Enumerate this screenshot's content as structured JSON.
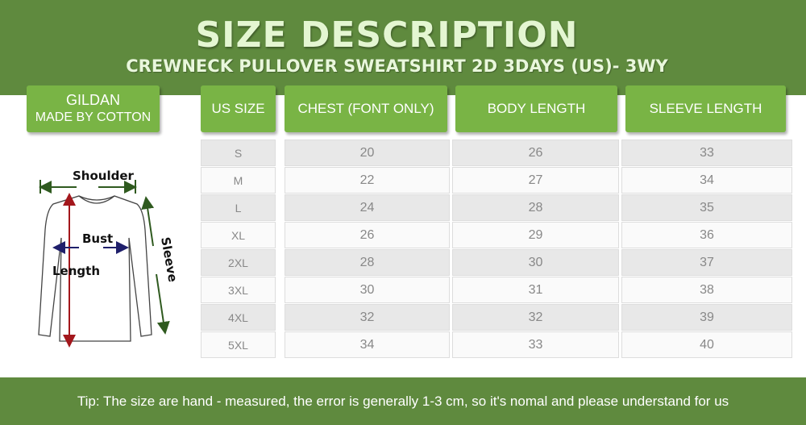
{
  "header": {
    "title": "SIZE DESCRIPTION",
    "subtitle": "CREWNECK PULLOVER SWEATSHIRT 2D 3DAYS (US)- 3WY"
  },
  "brand": {
    "name": "GILDAN",
    "material": "MADE BY COTTON"
  },
  "diagram": {
    "shoulder": "Shoulder",
    "bust": "Bust",
    "length": "Length",
    "sleeve": "Sleeve"
  },
  "table": {
    "columns": [
      "US SIZE",
      "CHEST (FONT ONLY)",
      "BODY LENGTH",
      "SLEEVE LENGTH"
    ],
    "rows": [
      [
        "S",
        "20",
        "26",
        "33"
      ],
      [
        "M",
        "22",
        "27",
        "34"
      ],
      [
        "L",
        "24",
        "28",
        "35"
      ],
      [
        "XL",
        "26",
        "29",
        "36"
      ],
      [
        "2XL",
        "28",
        "30",
        "37"
      ],
      [
        "3XL",
        "30",
        "31",
        "38"
      ],
      [
        "4XL",
        "32",
        "32",
        "39"
      ],
      [
        "5XL",
        "34",
        "33",
        "40"
      ]
    ]
  },
  "footer": {
    "tip": "Tip: The size are hand - measured, the error is generally 1-3 cm, so it's nomal and please understand for us"
  },
  "colors": {
    "dark_green": "#5f8a3e",
    "light_green": "#79b445",
    "length_arrow": "#a3171c",
    "bust_arrow": "#1f1f6b",
    "sleeve_arrow": "#2f5a1f"
  }
}
